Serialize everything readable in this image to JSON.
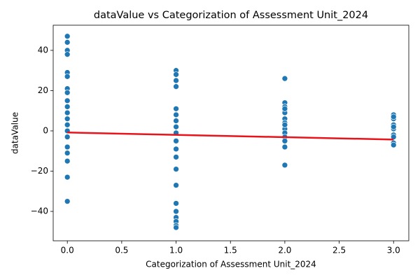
{
  "chart_data": {
    "type": "scatter",
    "title": "dataValue vs Categorization of Assessment Unit_2024",
    "x_label": "Categorization of Assessment Unit_2024",
    "y_label": "dataValue",
    "xlim": [
      -0.13,
      3.14
    ],
    "ylim": [
      -54.6,
      52.5
    ],
    "xticks": [
      {
        "value": 0,
        "label": "0.0"
      },
      {
        "value": 0.5,
        "label": "0.5"
      },
      {
        "value": 1,
        "label": "1.0"
      },
      {
        "value": 1.5,
        "label": "1.5"
      },
      {
        "value": 2,
        "label": "2.0"
      },
      {
        "value": 2.5,
        "label": "2.5"
      },
      {
        "value": 3,
        "label": "3.0"
      }
    ],
    "yticks": [
      {
        "value": -40,
        "label": "−40"
      },
      {
        "value": -20,
        "label": "−20"
      },
      0,
      20,
      40
    ],
    "series": [
      {
        "color": "#1f77b4",
        "x": [
          0,
          0,
          0,
          0,
          0,
          0,
          0,
          0,
          0,
          0,
          0,
          0,
          0,
          0,
          0,
          0,
          0,
          0,
          0,
          0,
          1,
          1,
          1,
          1,
          1,
          1,
          1,
          1,
          1,
          1,
          1,
          1,
          1,
          1,
          1,
          1,
          1,
          1,
          1,
          1,
          2,
          2,
          2,
          2,
          2,
          2,
          2,
          2,
          2,
          2,
          2,
          2,
          2,
          2,
          2,
          3,
          3,
          3,
          3,
          3,
          3,
          3,
          3,
          3,
          3
        ],
        "y": [
          47,
          44,
          40,
          38,
          29,
          27,
          21,
          19,
          15,
          12,
          9,
          6,
          3,
          0,
          -3,
          -8,
          -11,
          -15,
          -23,
          -35,
          30,
          28,
          25,
          22,
          11,
          8,
          5,
          2,
          -1,
          -5,
          -9,
          -13,
          -19,
          -27,
          -36,
          -40,
          -43,
          -45,
          -47,
          -48,
          26,
          14,
          12,
          10,
          9,
          6,
          4,
          1,
          -1,
          -3,
          -5,
          -8,
          -17,
          3,
          11,
          8,
          6,
          3,
          1,
          -2,
          -3,
          -6,
          -7,
          7,
          2
        ]
      }
    ],
    "regression": {
      "color": "#e8141b",
      "x": [
        0,
        3
      ],
      "y": [
        -0.8,
        -4.3
      ]
    }
  }
}
